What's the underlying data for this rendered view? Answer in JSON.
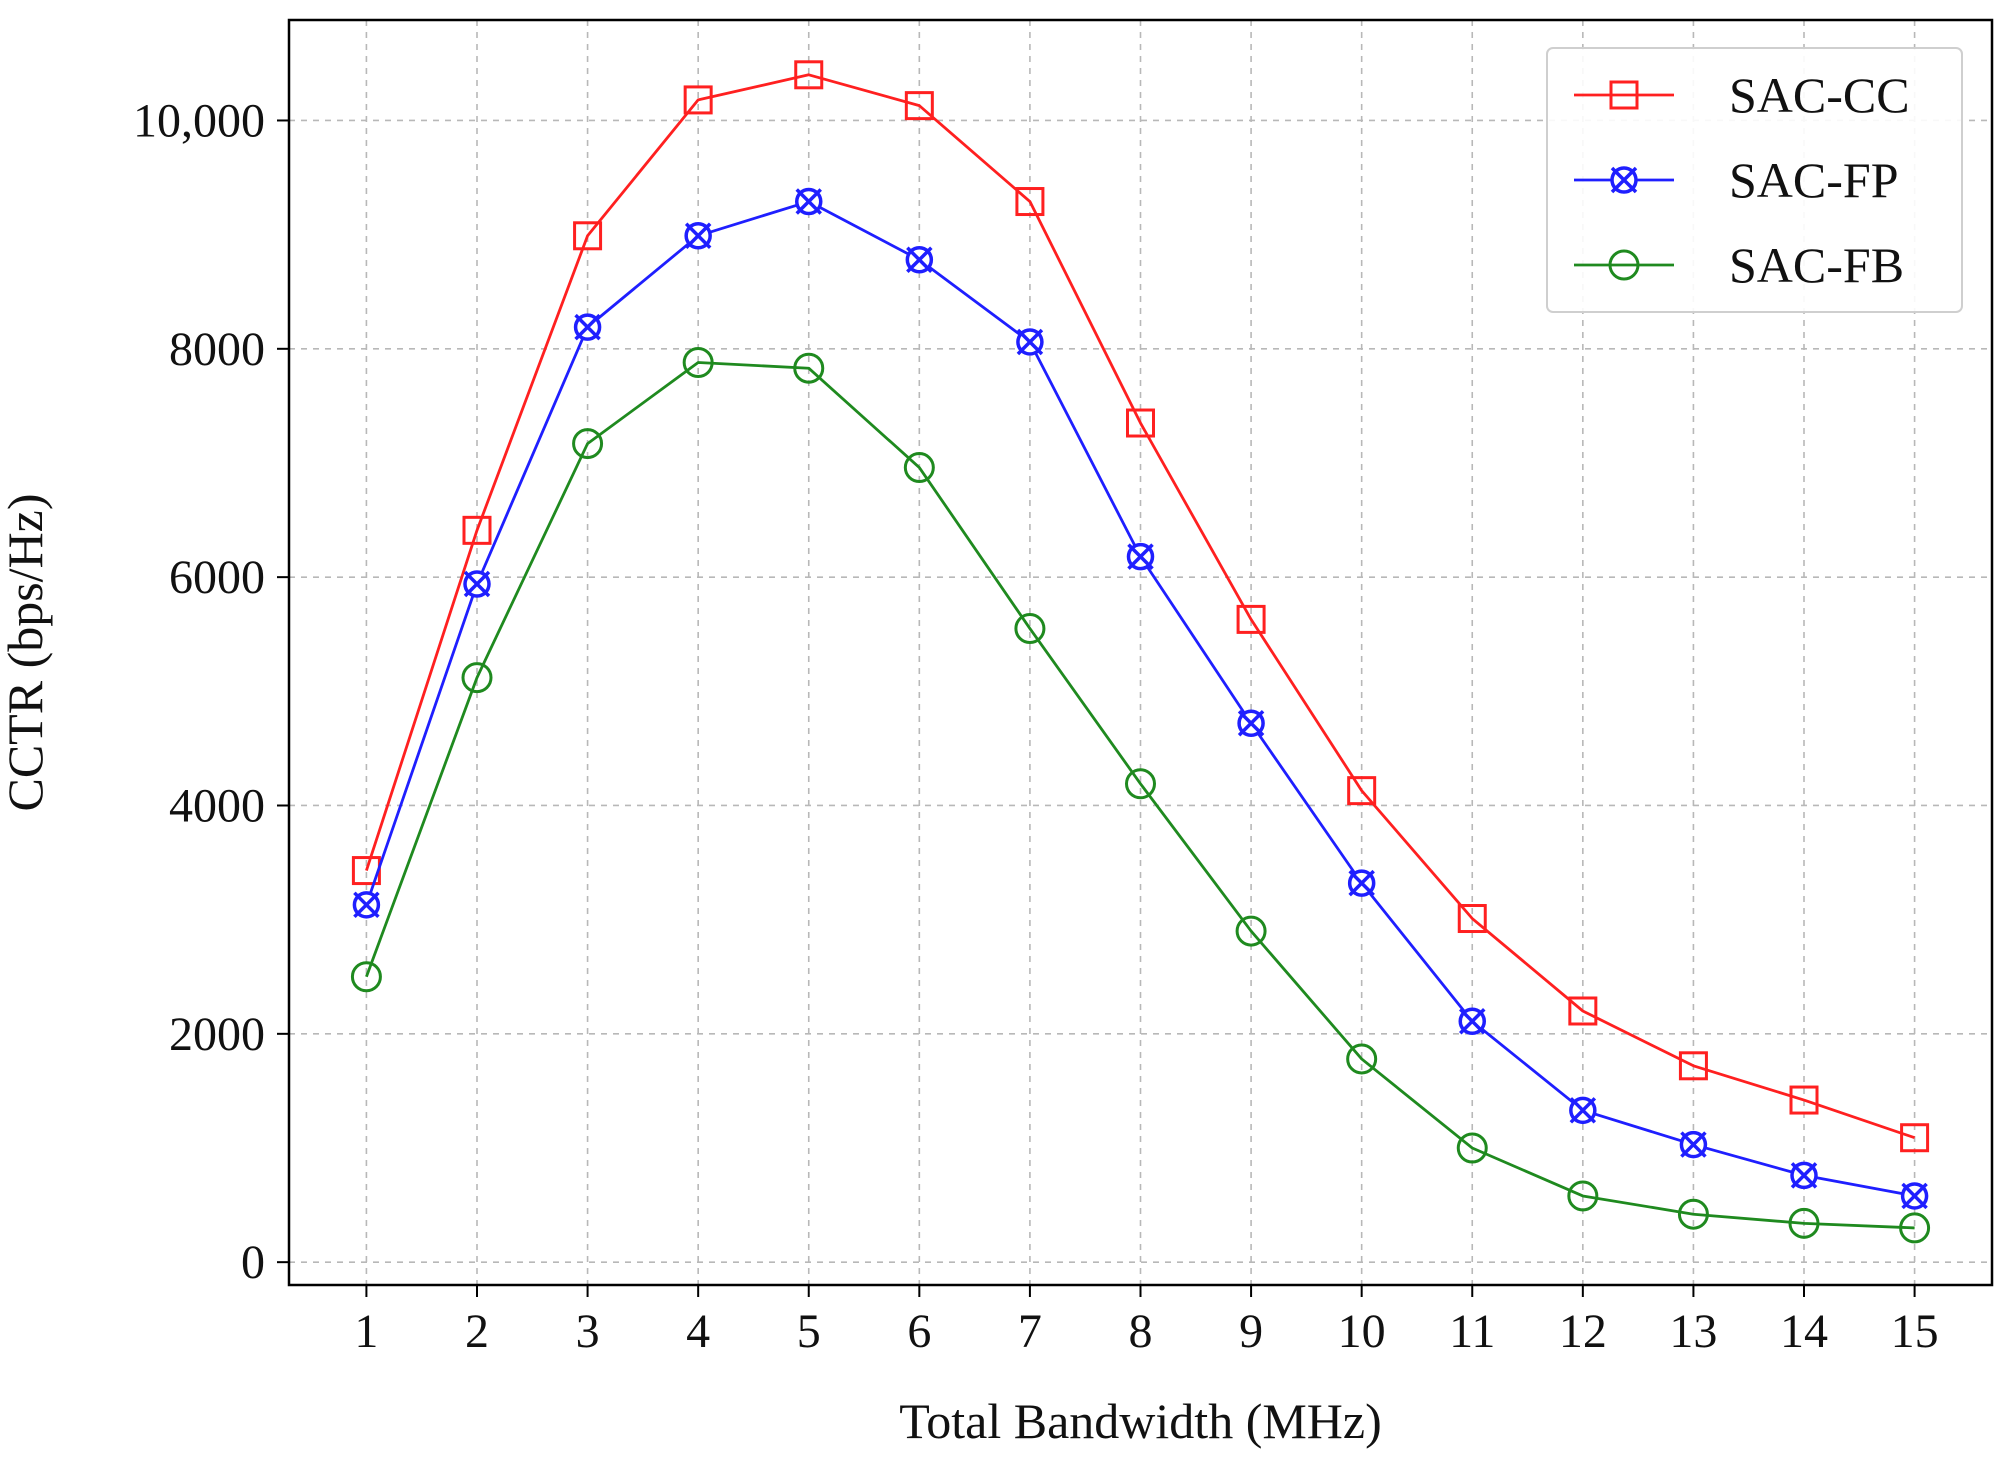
{
  "chart_data": {
    "type": "line",
    "title": "",
    "xlabel": "Total Bandwidth (MHz)",
    "ylabel": "CCTR (bps/Hz)",
    "x": [
      1,
      2,
      3,
      4,
      5,
      6,
      7,
      8,
      9,
      10,
      11,
      12,
      13,
      14,
      15
    ],
    "xlim": [
      0.3,
      15.7
    ],
    "ylim": [
      -200,
      10880
    ],
    "xticks": [
      1,
      2,
      3,
      4,
      5,
      6,
      7,
      8,
      9,
      10,
      11,
      12,
      13,
      14,
      15
    ],
    "xtick_labels": [
      "1",
      "2",
      "3",
      "4",
      "5",
      "6",
      "7",
      "8",
      "9",
      "10",
      "11",
      "12",
      "13",
      "14",
      "15"
    ],
    "yticks": [
      0,
      2000,
      4000,
      6000,
      8000,
      10000
    ],
    "ytick_labels": [
      "0",
      "2000",
      "4000",
      "6000",
      "8000",
      "10,000"
    ],
    "grid": true,
    "legend_position": "top-right",
    "series": [
      {
        "name": "SAC-CC",
        "color": "#ff2020",
        "marker": "square",
        "values": [
          3430,
          6410,
          8990,
          10180,
          10400,
          10130,
          9290,
          7350,
          5630,
          4130,
          3010,
          2200,
          1720,
          1420,
          1090
        ]
      },
      {
        "name": "SAC-FP",
        "color": "#1f1fff",
        "marker": "x-circle",
        "values": [
          3130,
          5940,
          8190,
          8990,
          9290,
          8780,
          8060,
          6180,
          4720,
          3320,
          2110,
          1330,
          1030,
          760,
          580
        ]
      },
      {
        "name": "SAC-FB",
        "color": "#1f8a1f",
        "marker": "circle",
        "values": [
          2500,
          5120,
          7170,
          7880,
          7830,
          6960,
          5550,
          4190,
          2900,
          1780,
          1000,
          580,
          420,
          340,
          300
        ]
      }
    ]
  }
}
